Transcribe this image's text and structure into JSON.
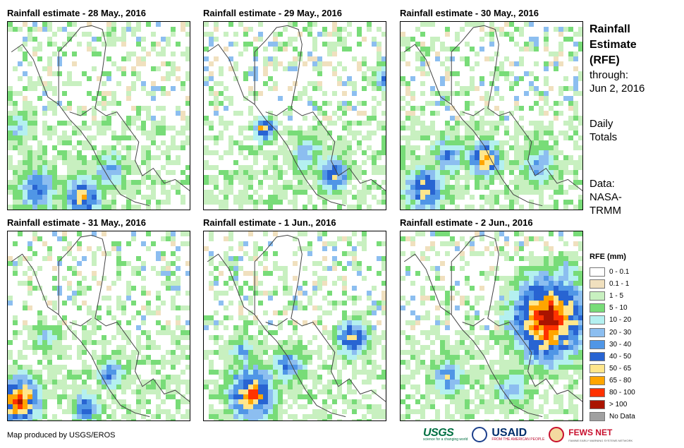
{
  "panels": [
    {
      "title": "Rainfall estimate - 28 May., 2016"
    },
    {
      "title": "Rainfall estimate - 29 May., 2016"
    },
    {
      "title": "Rainfall estimate - 30 May., 2016"
    },
    {
      "title": "Rainfall estimate - 31 May., 2016"
    },
    {
      "title": "Rainfall estimate - 1 Jun., 2016"
    },
    {
      "title": "Rainfall estimate - 2 Jun., 2016"
    }
  ],
  "sidebar": {
    "title_line1": "Rainfall",
    "title_line2": "Estimate",
    "title_line3": "(RFE)",
    "through_label": "through:",
    "through_date": "Jun 2, 2016",
    "totals_line1": "Daily",
    "totals_line2": "Totals",
    "source_line1": "Data:",
    "source_line2": "NASA-",
    "source_line3": "TRMM"
  },
  "legend": {
    "title": "RFE (mm)",
    "items": [
      {
        "label": "0 - 0.1",
        "color": "#FFFFFF"
      },
      {
        "label": "0.1 - 1",
        "color": "#F0E0BE"
      },
      {
        "label": "1 - 5",
        "color": "#C8F0C0"
      },
      {
        "label": "5 - 10",
        "color": "#78DC78"
      },
      {
        "label": "10 - 20",
        "color": "#B4F0F0"
      },
      {
        "label": "20 - 30",
        "color": "#8CBEF0"
      },
      {
        "label": "30 - 40",
        "color": "#5096E6"
      },
      {
        "label": "40 - 50",
        "color": "#2864D2"
      },
      {
        "label": "50 - 65",
        "color": "#FFE68C"
      },
      {
        "label": "65 - 80",
        "color": "#FFA500"
      },
      {
        "label": "80 - 100",
        "color": "#FF3200"
      },
      {
        "label": "> 100",
        "color": "#AA1400"
      },
      {
        "label": "No Data",
        "color": "#A0A0A0"
      }
    ]
  },
  "footer": {
    "credit": "Map produced by USGS/EROS",
    "usgs": "USGS",
    "usgs_tagline": "science for a changing world",
    "usaid": "USAID",
    "usaid_tagline": "FROM THE AMERICAN PEOPLE",
    "fews": "FEWS NET",
    "fews_tagline": "FAMINE EARLY WARNING SYSTEMS NETWORK"
  }
}
